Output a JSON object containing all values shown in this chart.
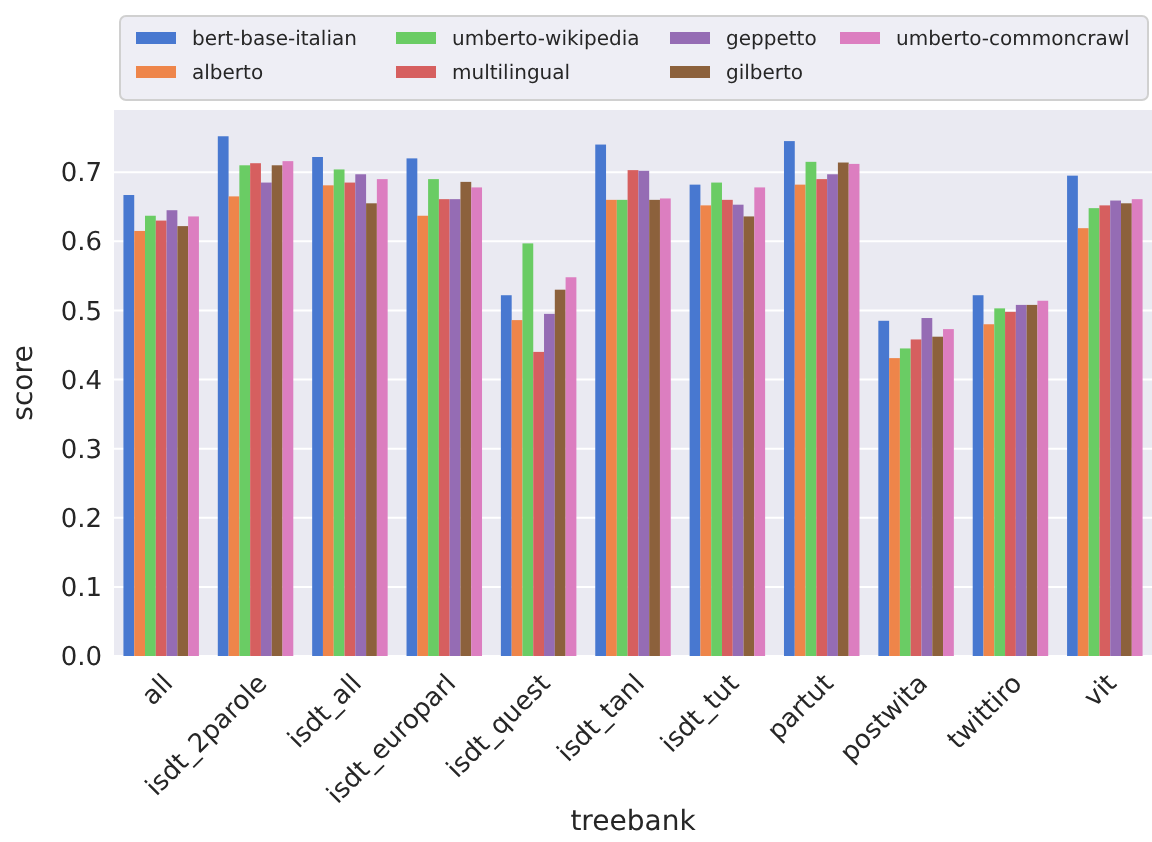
{
  "chart_data": {
    "type": "bar",
    "xlabel": "treebank",
    "ylabel": "score",
    "categories": [
      "all",
      "isdt_2parole",
      "isdt_all",
      "isdt_europarl",
      "isdt_quest",
      "isdt_tanl",
      "isdt_tut",
      "partut",
      "postwita",
      "twittiro",
      "vit"
    ],
    "series": [
      {
        "name": "bert-base-italian",
        "color": "#4878d0",
        "values": [
          0.667,
          0.752,
          0.722,
          0.72,
          0.522,
          0.74,
          0.682,
          0.745,
          0.485,
          0.522,
          0.695
        ]
      },
      {
        "name": "alberto",
        "color": "#ee854a",
        "values": [
          0.615,
          0.665,
          0.681,
          0.637,
          0.486,
          0.66,
          0.652,
          0.682,
          0.431,
          0.48,
          0.619
        ]
      },
      {
        "name": "umberto-wikipedia",
        "color": "#6acc64",
        "values": [
          0.637,
          0.71,
          0.704,
          0.69,
          0.597,
          0.66,
          0.685,
          0.715,
          0.445,
          0.503,
          0.648
        ]
      },
      {
        "name": "multilingual",
        "color": "#d65f5f",
        "values": [
          0.63,
          0.713,
          0.685,
          0.661,
          0.44,
          0.703,
          0.66,
          0.69,
          0.458,
          0.498,
          0.652
        ]
      },
      {
        "name": "geppetto",
        "color": "#956cb4",
        "values": [
          0.645,
          0.685,
          0.697,
          0.661,
          0.495,
          0.702,
          0.653,
          0.697,
          0.489,
          0.508,
          0.659
        ]
      },
      {
        "name": "gilberto",
        "color": "#8c613c",
        "values": [
          0.622,
          0.71,
          0.655,
          0.686,
          0.53,
          0.66,
          0.636,
          0.714,
          0.462,
          0.508,
          0.655
        ]
      },
      {
        "name": "umberto-commoncrawl",
        "color": "#dc7ec0",
        "values": [
          0.636,
          0.716,
          0.69,
          0.678,
          0.548,
          0.662,
          0.678,
          0.712,
          0.473,
          0.514,
          0.661
        ]
      }
    ],
    "ylim": [
      0,
      0.79
    ],
    "yticks": [
      {
        "value": 0,
        "label": "0.0"
      },
      {
        "value": 0.1,
        "label": "0.1"
      },
      {
        "value": 0.2,
        "label": "0.2"
      },
      {
        "value": 0.3,
        "label": "0.3"
      },
      {
        "value": 0.4,
        "label": "0.4"
      },
      {
        "value": 0.5,
        "label": "0.5"
      },
      {
        "value": 0.6,
        "label": "0.6"
      },
      {
        "value": 0.7,
        "label": "0.7"
      }
    ],
    "grid": "y",
    "legend": "top"
  }
}
